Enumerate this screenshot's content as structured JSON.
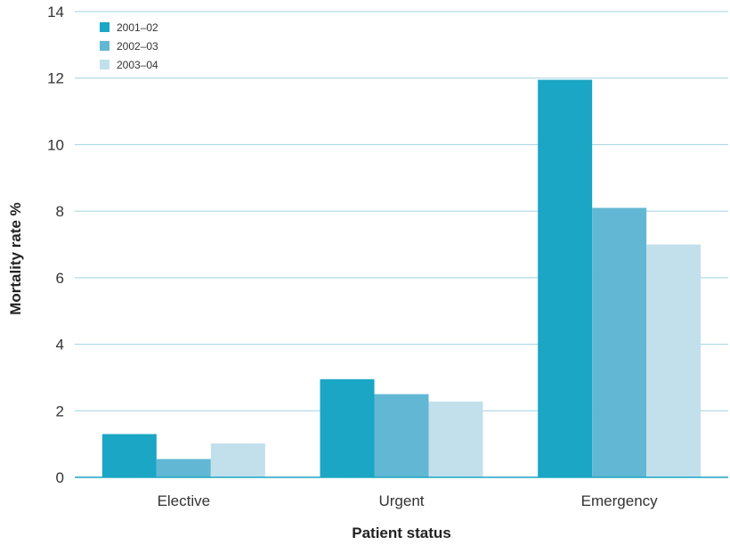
{
  "chart_data": {
    "type": "bar",
    "title": "",
    "xlabel": "Patient status",
    "ylabel": "Mortality rate %",
    "ylim": [
      0,
      14
    ],
    "yticks": [
      0,
      2,
      4,
      6,
      8,
      10,
      12,
      14
    ],
    "grid": true,
    "legend_position": "top-left",
    "categories": [
      "Elective",
      "Urgent",
      "Emergency"
    ],
    "series": [
      {
        "name": "2001–02",
        "color": "#1aa6c4",
        "values": [
          1.3,
          2.95,
          11.95
        ]
      },
      {
        "name": "2002–03",
        "color": "#62b8d4",
        "values": [
          0.55,
          2.5,
          8.1
        ]
      },
      {
        "name": "2003–04",
        "color": "#c2e0ec",
        "values": [
          1.02,
          2.28,
          7.0
        ]
      }
    ]
  }
}
